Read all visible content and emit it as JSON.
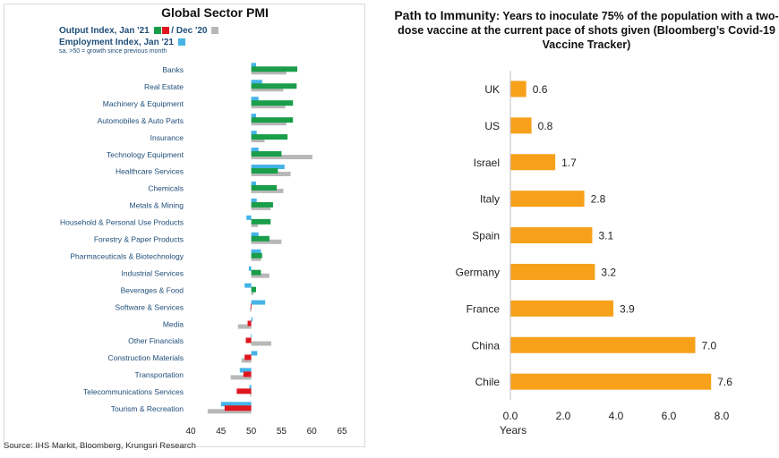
{
  "pmi": {
    "title": "Global Sector PMI",
    "legend": {
      "output_label": "Output Index, Jan '21",
      "sep_label": "/ Dec '20",
      "employment_label": "Employment Index, Jan '21",
      "note": "sa, >50 = growth since previous month"
    },
    "source": "Source: IHS Markit, Bloomberg, Krungsri Research"
  },
  "immunity": {
    "title_lead": "Path to Immunity",
    "title_rest": ": Years to inoculate 75% of the population with a two-dose vaccine at the current pace of shots given (Bloomberg’s Covid-19 Vaccine Tracker)"
  },
  "chart_data": [
    {
      "type": "bar",
      "orientation": "horizontal",
      "title": "Global Sector PMI",
      "categories": [
        "Banks",
        "Real Estate",
        "Machinery & Equipment",
        "Automobiles & Auto Parts",
        "Insurance",
        "Technology Equipment",
        "Healthcare Services",
        "Chemicals",
        "Metals & Mining",
        "Household & Personal Use Products",
        "Forestry & Paper Products",
        "Pharmaceuticals & Biotechnology",
        "Industrial Services",
        "Beverages & Food",
        "Software & Services",
        "Media",
        "Other Financials",
        "Construction Materials",
        "Transportation",
        "Telecommunications Services",
        "Tourism & Recreation"
      ],
      "series": [
        {
          "name": "Employment Index, Jan '21",
          "color": "#45b3e7",
          "values": [
            50.8,
            51.8,
            51.2,
            50.8,
            50.9,
            51.2,
            55.5,
            50.8,
            50.9,
            49.2,
            51.2,
            51.6,
            49.6,
            48.9,
            52.3,
            50.2,
            49.9,
            51.0,
            48.1,
            49.7,
            45.0
          ]
        },
        {
          "name": "Output Index, Jan '21",
          "color": "#1a9e4a",
          "values": [
            57.6,
            57.5,
            56.9,
            56.9,
            56.0,
            55.0,
            54.4,
            54.2,
            53.6,
            53.2,
            53.0,
            51.8,
            51.6,
            50.8,
            49.9,
            49.4,
            49.1,
            48.9,
            48.7,
            47.6,
            45.6
          ]
        },
        {
          "name": "Dec '20",
          "color": "#b8b8b8",
          "values": [
            55.8,
            55.3,
            55.6,
            55.8,
            52.2,
            60.1,
            56.5,
            55.3,
            53.2,
            51.1,
            55.0,
            51.6,
            53.0,
            50.4,
            49.8,
            47.8,
            53.3,
            48.4,
            46.6,
            49.8,
            42.8
          ]
        }
      ],
      "xticks": [
        40,
        45,
        50,
        55,
        60,
        65
      ],
      "xlim": [
        40,
        65
      ],
      "legend_position": "top-left",
      "note": "sa, >50 = growth since previous month"
    },
    {
      "type": "bar",
      "orientation": "horizontal",
      "title": "Path to Immunity: Years to inoculate 75% of the population with a two-dose vaccine at the current pace of shots given (Bloomberg’s Covid-19 Vaccine Tracker)",
      "categories": [
        "UK",
        "US",
        "Israel",
        "Italy",
        "Spain",
        "Germany",
        "France",
        "China",
        "Chile"
      ],
      "values": [
        0.6,
        0.8,
        1.7,
        2.8,
        3.1,
        3.2,
        3.9,
        7.0,
        7.6
      ],
      "value_labels": [
        "0.6",
        "0.8",
        "1.7",
        "2.8",
        "3.1",
        "3.2",
        "3.9",
        "7.0",
        "7.6"
      ],
      "color": "#f7a11b",
      "xlabel": "Years",
      "xticks": [
        "0.0",
        "2.0",
        "4.0",
        "6.0",
        "8.0"
      ],
      "xlim": [
        0,
        8
      ]
    }
  ]
}
